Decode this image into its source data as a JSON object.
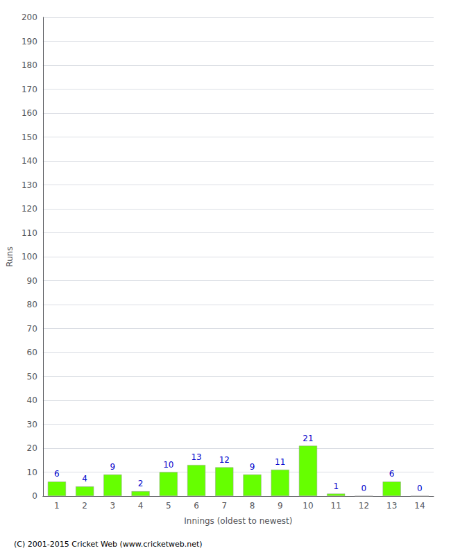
{
  "chart_data": {
    "type": "bar",
    "xlabel": "Innings (oldest to newest)",
    "ylabel": "Runs",
    "categories": [
      1,
      2,
      3,
      4,
      5,
      6,
      7,
      8,
      9,
      10,
      11,
      12,
      13,
      14
    ],
    "values": [
      6,
      4,
      9,
      2,
      10,
      13,
      12,
      9,
      11,
      21,
      1,
      0,
      6,
      0
    ],
    "color": "#66ff00",
    "ylim": [
      0,
      200
    ],
    "yticks": [
      0,
      10,
      20,
      30,
      40,
      50,
      60,
      70,
      80,
      90,
      100,
      110,
      120,
      130,
      140,
      150,
      160,
      170,
      180,
      190,
      200
    ],
    "grid": true,
    "data_labels": true,
    "annotations": [
      "(C) 2001-2015 Cricket Web (www.cricketweb.net)"
    ]
  }
}
